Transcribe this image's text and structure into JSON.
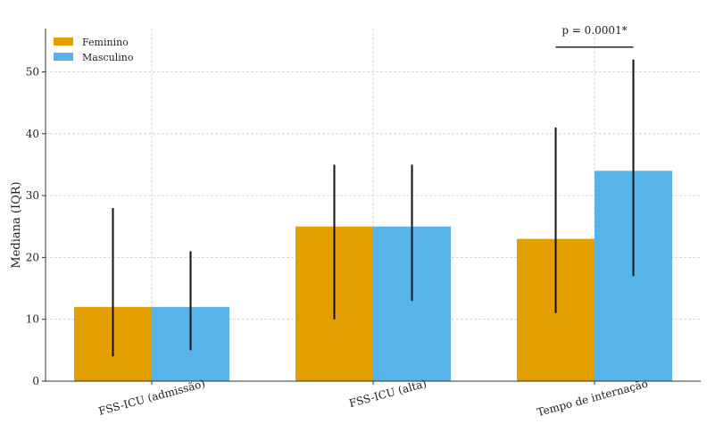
{
  "chart_data": {
    "type": "bar",
    "title": "",
    "xlabel": "",
    "ylabel": "Mediana (IQR)",
    "ylim": [
      0,
      57
    ],
    "yticks": [
      0,
      10,
      20,
      30,
      40,
      50
    ],
    "grid": true,
    "legend_position": "top-left",
    "categories": [
      "FSS-ICU (admissão)",
      "FSS-ICU (alta)",
      "Tempo de internação"
    ],
    "series": [
      {
        "name": "Feminino",
        "color": "#e39e00",
        "values": [
          12,
          25,
          23
        ],
        "error_low": [
          4,
          10,
          11
        ],
        "error_high": [
          28,
          35,
          41
        ]
      },
      {
        "name": "Masculino",
        "color": "#56b4e9",
        "values": [
          12,
          25,
          34
        ],
        "error_low": [
          5,
          13,
          17
        ],
        "error_high": [
          21,
          35,
          52
        ]
      }
    ],
    "annotations": [
      {
        "category_index": 2,
        "text": "p = 0.0001*",
        "y": 54
      }
    ]
  }
}
